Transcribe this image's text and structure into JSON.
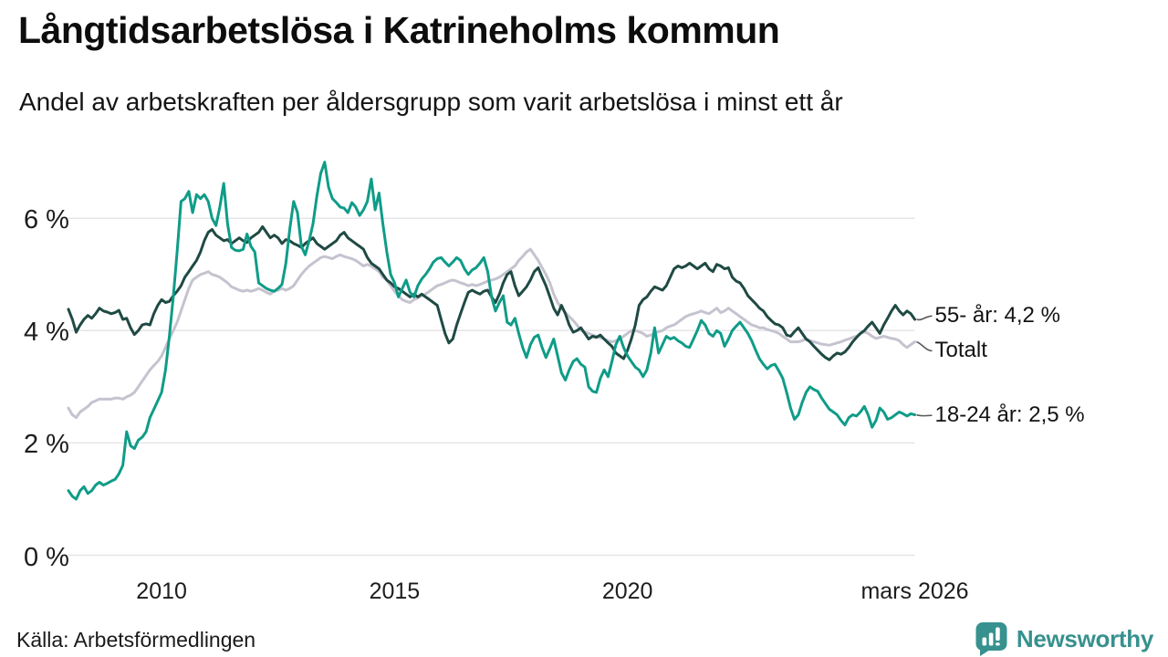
{
  "header": {
    "title": "Långtidsarbetslösa i Katrineholms kommun",
    "subtitle": "Andel av arbetskraften per åldersgrupp som varit arbetslösa i minst ett år"
  },
  "footer": {
    "source": "Källa: Arbetsförmedlingen",
    "logo_text": "Newsworthy"
  },
  "colors": {
    "series_55": "#1f4a43",
    "series_total": "#c5c3cf",
    "series_18_24": "#0f9c88",
    "gridline": "#e6e6ea",
    "leader": "#5a5a5a",
    "text": "#1a1a1a",
    "logo_teal": "#37918e",
    "background": "#ffffff"
  },
  "chart_data": {
    "type": "line",
    "title": "Långtidsarbetslösa i Katrineholms kommun",
    "subtitle": "Andel av arbetskraften per åldersgrupp som varit arbetslösa i minst ett år",
    "unit": "% av arbetskraften",
    "x_domain": [
      2008.0,
      2026.1667
    ],
    "y_domain": [
      0,
      7.2
    ],
    "grid": "horizontal",
    "legend_position": "end-of-line-right",
    "y_ticks": [
      {
        "value": 0,
        "label": "0 %"
      },
      {
        "value": 2,
        "label": "2 %"
      },
      {
        "value": 4,
        "label": "4 %"
      },
      {
        "value": 6,
        "label": "6 %"
      }
    ],
    "x_ticks": [
      {
        "value": 2010,
        "label": "2010"
      },
      {
        "value": 2015,
        "label": "2015"
      },
      {
        "value": 2020,
        "label": "2020"
      },
      {
        "value": 2026.1667,
        "label": "mars 2026"
      }
    ],
    "series": [
      {
        "name": "Totalt",
        "color": "#c5c3cf",
        "end_label": "Totalt",
        "end_value": 3.8,
        "label_pct": 3.64,
        "start_year": 2008,
        "points_per_year": 12,
        "values": [
          2.62,
          2.5,
          2.45,
          2.55,
          2.6,
          2.65,
          2.72,
          2.75,
          2.78,
          2.78,
          2.78,
          2.78,
          2.8,
          2.8,
          2.78,
          2.82,
          2.85,
          2.9,
          3.0,
          3.1,
          3.2,
          3.3,
          3.38,
          3.45,
          3.55,
          3.7,
          3.85,
          4.0,
          4.15,
          4.35,
          4.55,
          4.75,
          4.9,
          4.95,
          5.0,
          5.02,
          5.05,
          5.0,
          4.98,
          4.95,
          4.9,
          4.85,
          4.78,
          4.75,
          4.72,
          4.7,
          4.72,
          4.7,
          4.72,
          4.75,
          4.72,
          4.68,
          4.65,
          4.7,
          4.72,
          4.75,
          4.72,
          4.75,
          4.8,
          4.9,
          5.0,
          5.08,
          5.15,
          5.2,
          5.25,
          5.3,
          5.32,
          5.3,
          5.28,
          5.32,
          5.35,
          5.32,
          5.3,
          5.28,
          5.25,
          5.2,
          5.15,
          5.18,
          5.15,
          5.1,
          5.05,
          4.95,
          4.9,
          4.8,
          4.7,
          4.62,
          4.55,
          4.52,
          4.5,
          4.55,
          4.58,
          4.62,
          4.65,
          4.7,
          4.75,
          4.8,
          4.82,
          4.85,
          4.88,
          4.9,
          4.88,
          4.85,
          4.83,
          4.8,
          4.82,
          4.8,
          4.82,
          4.85,
          4.88,
          4.9,
          4.92,
          4.95,
          5.0,
          5.05,
          5.1,
          5.15,
          5.25,
          5.32,
          5.4,
          5.45,
          5.35,
          5.25,
          5.12,
          5.0,
          4.85,
          4.65,
          4.5,
          4.4,
          4.32,
          4.25,
          4.18,
          4.1,
          4.0,
          3.97,
          3.95,
          3.92,
          3.9,
          3.87,
          3.85,
          3.82,
          3.8,
          3.82,
          3.85,
          3.9,
          3.95,
          4.0,
          4.0,
          3.98,
          3.95,
          3.9,
          3.92,
          3.95,
          3.98,
          4.0,
          4.05,
          4.08,
          4.1,
          4.15,
          4.2,
          4.25,
          4.28,
          4.3,
          4.32,
          4.35,
          4.32,
          4.3,
          4.35,
          4.4,
          4.32,
          4.35,
          4.4,
          4.35,
          4.3,
          4.25,
          4.2,
          4.15,
          4.1,
          4.08,
          4.05,
          4.05,
          4.02,
          4.0,
          3.98,
          3.95,
          3.9,
          3.85,
          3.8,
          3.8,
          3.8,
          3.82,
          3.85,
          3.82,
          3.8,
          3.78,
          3.76,
          3.75,
          3.74,
          3.76,
          3.78,
          3.8,
          3.83,
          3.85,
          3.88,
          3.9,
          3.95,
          3.98,
          3.95,
          3.9,
          3.86,
          3.88,
          3.9,
          3.88,
          3.86,
          3.85,
          3.82,
          3.75,
          3.7,
          3.75,
          3.8
        ]
      },
      {
        "name": "55- år",
        "color": "#1f4a43",
        "end_label": "55- år: 4,2 %",
        "end_value": 4.2,
        "label_pct": 4.26,
        "start_year": 2008,
        "points_per_year": 12,
        "values": [
          4.38,
          4.2,
          3.97,
          4.1,
          4.2,
          4.27,
          4.22,
          4.3,
          4.4,
          4.35,
          4.33,
          4.3,
          4.32,
          4.36,
          4.2,
          4.22,
          4.05,
          3.93,
          4.0,
          4.1,
          4.12,
          4.1,
          4.3,
          4.45,
          4.55,
          4.5,
          4.52,
          4.62,
          4.7,
          4.8,
          4.95,
          5.05,
          5.15,
          5.25,
          5.4,
          5.6,
          5.75,
          5.8,
          5.7,
          5.65,
          5.6,
          5.62,
          5.55,
          5.6,
          5.65,
          5.6,
          5.57,
          5.65,
          5.7,
          5.75,
          5.85,
          5.75,
          5.65,
          5.7,
          5.65,
          5.55,
          5.62,
          5.6,
          5.55,
          5.52,
          5.48,
          5.55,
          5.6,
          5.65,
          5.55,
          5.5,
          5.45,
          5.5,
          5.55,
          5.6,
          5.7,
          5.75,
          5.65,
          5.6,
          5.55,
          5.5,
          5.45,
          5.3,
          5.2,
          5.15,
          5.1,
          5.0,
          4.9,
          4.85,
          4.78,
          4.75,
          4.7,
          4.65,
          4.6,
          4.65,
          4.6,
          4.65,
          4.6,
          4.55,
          4.5,
          4.45,
          4.2,
          3.95,
          3.78,
          3.85,
          4.1,
          4.3,
          4.5,
          4.68,
          4.72,
          4.68,
          4.65,
          4.7,
          4.72,
          4.6,
          4.5,
          4.65,
          4.85,
          5.0,
          5.05,
          4.8,
          4.62,
          4.7,
          4.78,
          4.9,
          5.05,
          5.12,
          4.95,
          4.8,
          4.6,
          4.4,
          4.28,
          4.45,
          4.3,
          4.1,
          3.97,
          4.0,
          4.05,
          3.95,
          3.85,
          3.9,
          3.88,
          3.92,
          3.85,
          3.78,
          3.72,
          3.6,
          3.55,
          3.5,
          3.65,
          3.85,
          4.1,
          4.45,
          4.55,
          4.6,
          4.7,
          4.78,
          4.75,
          4.72,
          4.8,
          4.95,
          5.1,
          5.15,
          5.12,
          5.15,
          5.2,
          5.15,
          5.1,
          5.15,
          5.2,
          5.1,
          5.05,
          5.18,
          5.15,
          5.1,
          5.12,
          4.95,
          4.88,
          4.85,
          4.75,
          4.62,
          4.55,
          4.48,
          4.4,
          4.35,
          4.25,
          4.18,
          4.12,
          4.1,
          4.05,
          3.92,
          3.9,
          3.98,
          4.05,
          3.95,
          3.85,
          3.8,
          3.72,
          3.65,
          3.58,
          3.52,
          3.48,
          3.55,
          3.6,
          3.58,
          3.62,
          3.7,
          3.8,
          3.88,
          3.95,
          4.0,
          4.08,
          4.15,
          4.05,
          3.95,
          4.1,
          4.22,
          4.35,
          4.45,
          4.35,
          4.28,
          4.35,
          4.3,
          4.2
        ]
      },
      {
        "name": "18-24 år",
        "color": "#0f9c88",
        "end_label": "18-24 år: 2,5 %",
        "end_value": 2.5,
        "label_pct": 2.49,
        "start_year": 2008,
        "points_per_year": 12,
        "values": [
          1.15,
          1.05,
          1.0,
          1.15,
          1.22,
          1.1,
          1.15,
          1.25,
          1.3,
          1.25,
          1.28,
          1.32,
          1.35,
          1.45,
          1.6,
          2.2,
          1.95,
          1.9,
          2.05,
          2.1,
          2.2,
          2.45,
          2.6,
          2.75,
          2.9,
          3.3,
          3.9,
          4.6,
          5.4,
          6.3,
          6.35,
          6.48,
          6.1,
          6.42,
          6.35,
          6.42,
          6.3,
          6.0,
          5.87,
          6.2,
          6.62,
          5.9,
          5.48,
          5.43,
          5.42,
          5.45,
          5.72,
          5.5,
          5.4,
          4.85,
          4.8,
          4.75,
          4.72,
          4.7,
          4.75,
          4.82,
          5.2,
          5.8,
          6.3,
          6.1,
          5.5,
          5.35,
          5.6,
          5.9,
          6.4,
          6.8,
          7.0,
          6.55,
          6.35,
          6.28,
          6.2,
          6.18,
          6.1,
          6.28,
          6.2,
          6.05,
          6.15,
          6.3,
          6.7,
          6.15,
          6.45,
          5.9,
          5.4,
          5.0,
          4.85,
          4.6,
          4.75,
          4.9,
          4.68,
          4.6,
          4.8,
          4.92,
          5.0,
          5.1,
          5.22,
          5.28,
          5.3,
          5.22,
          5.15,
          5.22,
          5.3,
          5.25,
          5.1,
          5.0,
          5.08,
          5.12,
          5.2,
          5.3,
          5.05,
          4.6,
          4.35,
          4.5,
          4.62,
          4.15,
          4.1,
          4.22,
          3.95,
          3.7,
          3.52,
          3.75,
          3.88,
          3.92,
          3.7,
          3.52,
          3.68,
          3.85,
          3.55,
          3.25,
          3.12,
          3.3,
          3.45,
          3.5,
          3.4,
          3.35,
          3.0,
          2.92,
          2.9,
          3.15,
          3.3,
          3.18,
          3.45,
          3.75,
          3.9,
          3.7,
          3.55,
          3.45,
          3.35,
          3.3,
          3.18,
          3.3,
          3.6,
          4.05,
          3.6,
          3.75,
          3.9,
          3.85,
          3.88,
          3.82,
          3.78,
          3.72,
          3.7,
          3.85,
          4.0,
          4.18,
          4.1,
          3.95,
          3.9,
          4.0,
          3.95,
          3.72,
          3.85,
          4.0,
          4.08,
          4.15,
          4.05,
          3.95,
          3.82,
          3.65,
          3.5,
          3.4,
          3.32,
          3.38,
          3.4,
          3.28,
          3.15,
          2.9,
          2.62,
          2.42,
          2.5,
          2.72,
          2.9,
          3.0,
          2.95,
          2.92,
          2.8,
          2.7,
          2.6,
          2.55,
          2.5,
          2.4,
          2.32,
          2.45,
          2.5,
          2.48,
          2.55,
          2.65,
          2.5,
          2.28,
          2.4,
          2.62,
          2.55,
          2.42,
          2.45,
          2.5,
          2.55,
          2.52,
          2.48,
          2.52,
          2.5
        ]
      }
    ]
  }
}
